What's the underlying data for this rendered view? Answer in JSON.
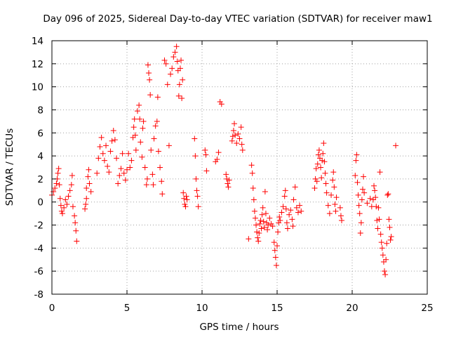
{
  "chart_data": {
    "type": "scatter",
    "title": "Day 096 of 2025, Sidereal Day-to-day VTEC variation (SDTVAR) for receiver maw1",
    "xlabel": "GPS time / hours",
    "ylabel": "SDTVAR / TECUs",
    "xlim": [
      0,
      25
    ],
    "ylim": [
      -8,
      14
    ],
    "xticks": [
      "0",
      "5",
      "10",
      "15",
      "20",
      "25"
    ],
    "yticks": [
      "-8",
      "-6",
      "-4",
      "-2",
      "0",
      "2",
      "4",
      "6",
      "8",
      "10",
      "12",
      "14"
    ],
    "grid": true,
    "marker": "+",
    "marker_color": "#ff0000",
    "series": [
      {
        "name": "SDTVAR",
        "points": [
          [
            0.0,
            0.6
          ],
          [
            0.1,
            0.9
          ],
          [
            0.2,
            1.2
          ],
          [
            0.3,
            1.6
          ],
          [
            0.35,
            2.0
          ],
          [
            0.4,
            2.5
          ],
          [
            0.45,
            2.9
          ],
          [
            0.5,
            1.5
          ],
          [
            0.55,
            0.3
          ],
          [
            0.6,
            -0.3
          ],
          [
            0.65,
            -0.8
          ],
          [
            0.7,
            -1.0
          ],
          [
            0.8,
            -0.5
          ],
          [
            0.9,
            0.2
          ],
          [
            1.0,
            -0.2
          ],
          [
            1.1,
            0.5
          ],
          [
            1.2,
            1.0
          ],
          [
            1.3,
            1.5
          ],
          [
            1.35,
            2.3
          ],
          [
            1.4,
            -0.4
          ],
          [
            1.5,
            -1.2
          ],
          [
            1.55,
            -1.8
          ],
          [
            1.6,
            -2.5
          ],
          [
            1.65,
            -3.4
          ],
          [
            2.2,
            -0.6
          ],
          [
            2.25,
            -0.2
          ],
          [
            2.3,
            0.3
          ],
          [
            2.3,
            1.2
          ],
          [
            2.4,
            2.2
          ],
          [
            2.45,
            2.8
          ],
          [
            2.5,
            1.6
          ],
          [
            2.6,
            0.9
          ],
          [
            3.0,
            2.5
          ],
          [
            3.1,
            3.8
          ],
          [
            3.2,
            4.8
          ],
          [
            3.3,
            5.6
          ],
          [
            3.4,
            4.2
          ],
          [
            3.5,
            3.6
          ],
          [
            3.6,
            4.9
          ],
          [
            3.7,
            3.1
          ],
          [
            3.8,
            2.6
          ],
          [
            3.9,
            4.4
          ],
          [
            4.0,
            5.3
          ],
          [
            4.1,
            6.2
          ],
          [
            4.2,
            5.4
          ],
          [
            4.3,
            3.8
          ],
          [
            4.4,
            1.6
          ],
          [
            4.5,
            2.3
          ],
          [
            4.6,
            2.9
          ],
          [
            4.7,
            4.2
          ],
          [
            4.8,
            2.5
          ],
          [
            4.9,
            1.9
          ],
          [
            5.0,
            2.8
          ],
          [
            5.1,
            4.2
          ],
          [
            5.2,
            3.0
          ],
          [
            5.3,
            3.6
          ],
          [
            5.4,
            5.6
          ],
          [
            5.45,
            6.5
          ],
          [
            5.5,
            7.2
          ],
          [
            5.55,
            5.8
          ],
          [
            5.6,
            4.5
          ],
          [
            5.7,
            7.9
          ],
          [
            5.8,
            8.4
          ],
          [
            5.85,
            7.2
          ],
          [
            5.9,
            5.2
          ],
          [
            6.0,
            3.9
          ],
          [
            6.05,
            6.4
          ],
          [
            6.1,
            7.0
          ],
          [
            6.2,
            3.0
          ],
          [
            6.3,
            1.5
          ],
          [
            6.35,
            2.0
          ],
          [
            6.4,
            11.9
          ],
          [
            6.45,
            11.2
          ],
          [
            6.5,
            10.6
          ],
          [
            6.55,
            9.3
          ],
          [
            6.6,
            4.5
          ],
          [
            6.7,
            2.4
          ],
          [
            6.75,
            1.5
          ],
          [
            6.8,
            5.5
          ],
          [
            6.9,
            6.6
          ],
          [
            7.0,
            7.0
          ],
          [
            7.05,
            9.1
          ],
          [
            7.1,
            4.4
          ],
          [
            7.2,
            3.0
          ],
          [
            7.3,
            1.8
          ],
          [
            7.35,
            0.7
          ],
          [
            7.5,
            12.3
          ],
          [
            7.6,
            12.0
          ],
          [
            7.7,
            10.2
          ],
          [
            7.8,
            4.9
          ],
          [
            7.9,
            11.1
          ],
          [
            8.0,
            11.6
          ],
          [
            8.1,
            12.6
          ],
          [
            8.2,
            13.0
          ],
          [
            8.3,
            13.5
          ],
          [
            8.35,
            12.2
          ],
          [
            8.4,
            11.4
          ],
          [
            8.45,
            9.2
          ],
          [
            8.5,
            10.2
          ],
          [
            8.55,
            11.6
          ],
          [
            8.6,
            12.3
          ],
          [
            8.65,
            9.0
          ],
          [
            8.7,
            10.6
          ],
          [
            8.75,
            0.8
          ],
          [
            8.8,
            0.3
          ],
          [
            8.85,
            -0.2
          ],
          [
            8.9,
            -0.4
          ],
          [
            8.95,
            0.5
          ],
          [
            9.0,
            0.2
          ],
          [
            9.5,
            5.5
          ],
          [
            9.55,
            4.0
          ],
          [
            9.6,
            2.0
          ],
          [
            9.65,
            1.0
          ],
          [
            9.7,
            0.5
          ],
          [
            9.75,
            -0.4
          ],
          [
            10.2,
            4.5
          ],
          [
            10.25,
            4.1
          ],
          [
            10.3,
            2.7
          ],
          [
            10.9,
            3.5
          ],
          [
            11.0,
            3.7
          ],
          [
            11.1,
            4.3
          ],
          [
            11.2,
            8.7
          ],
          [
            11.3,
            8.5
          ],
          [
            11.6,
            2.4
          ],
          [
            11.65,
            2.0
          ],
          [
            11.7,
            1.6
          ],
          [
            11.75,
            1.3
          ],
          [
            11.8,
            1.9
          ],
          [
            12.0,
            5.3
          ],
          [
            12.05,
            5.7
          ],
          [
            12.1,
            6.2
          ],
          [
            12.15,
            6.8
          ],
          [
            12.2,
            5.8
          ],
          [
            12.3,
            5.1
          ],
          [
            12.4,
            5.9
          ],
          [
            12.5,
            5.5
          ],
          [
            12.6,
            6.5
          ],
          [
            12.65,
            5.0
          ],
          [
            12.7,
            4.5
          ],
          [
            13.1,
            -3.2
          ],
          [
            13.3,
            3.2
          ],
          [
            13.35,
            2.5
          ],
          [
            13.4,
            1.2
          ],
          [
            13.45,
            0.2
          ],
          [
            13.5,
            -0.8
          ],
          [
            13.55,
            -1.4
          ],
          [
            13.6,
            -2.0
          ],
          [
            13.65,
            -2.6
          ],
          [
            13.7,
            -3.1
          ],
          [
            13.75,
            -3.4
          ],
          [
            13.8,
            -2.7
          ],
          [
            13.85,
            -1.9
          ],
          [
            13.9,
            -1.6
          ],
          [
            13.95,
            -2.3
          ],
          [
            14.0,
            -1.1
          ],
          [
            14.05,
            -0.5
          ],
          [
            14.1,
            -1.7
          ],
          [
            14.15,
            -2.2
          ],
          [
            14.2,
            0.9
          ],
          [
            14.25,
            -1.0
          ],
          [
            14.3,
            -1.8
          ],
          [
            14.35,
            -2.4
          ],
          [
            14.4,
            -2.0
          ],
          [
            14.5,
            -1.4
          ],
          [
            14.6,
            -1.9
          ],
          [
            14.7,
            -2.1
          ],
          [
            14.8,
            -3.5
          ],
          [
            14.85,
            -4.2
          ],
          [
            14.9,
            -4.8
          ],
          [
            14.95,
            -5.5
          ],
          [
            15.0,
            -3.8
          ],
          [
            15.05,
            -2.6
          ],
          [
            15.1,
            -1.8
          ],
          [
            15.15,
            -1.3
          ],
          [
            15.2,
            -1.6
          ],
          [
            15.3,
            -0.9
          ],
          [
            15.4,
            -0.4
          ],
          [
            15.5,
            0.5
          ],
          [
            15.55,
            1.0
          ],
          [
            15.6,
            -0.6
          ],
          [
            15.65,
            -1.8
          ],
          [
            15.7,
            -2.3
          ],
          [
            15.8,
            -1.1
          ],
          [
            15.9,
            -0.7
          ],
          [
            16.0,
            -1.5
          ],
          [
            16.05,
            -2.1
          ],
          [
            16.1,
            0.2
          ],
          [
            16.2,
            1.3
          ],
          [
            16.3,
            -0.5
          ],
          [
            16.4,
            -0.9
          ],
          [
            16.5,
            -0.3
          ],
          [
            16.6,
            -0.8
          ],
          [
            17.5,
            1.2
          ],
          [
            17.55,
            2.0
          ],
          [
            17.6,
            2.9
          ],
          [
            17.65,
            1.8
          ],
          [
            17.7,
            3.3
          ],
          [
            17.75,
            4.1
          ],
          [
            17.8,
            4.5
          ],
          [
            17.85,
            3.8
          ],
          [
            17.9,
            3.0
          ],
          [
            17.95,
            2.1
          ],
          [
            18.0,
            3.6
          ],
          [
            18.05,
            4.2
          ],
          [
            18.1,
            5.1
          ],
          [
            18.15,
            3.5
          ],
          [
            18.2,
            2.5
          ],
          [
            18.25,
            1.6
          ],
          [
            18.3,
            0.8
          ],
          [
            18.4,
            -0.3
          ],
          [
            18.5,
            -1.0
          ],
          [
            18.6,
            0.6
          ],
          [
            18.7,
            1.9
          ],
          [
            18.75,
            2.6
          ],
          [
            18.8,
            1.3
          ],
          [
            18.85,
            -0.2
          ],
          [
            18.9,
            -0.8
          ],
          [
            18.95,
            0.4
          ],
          [
            19.2,
            -0.5
          ],
          [
            19.25,
            -1.2
          ],
          [
            19.3,
            -1.6
          ],
          [
            20.2,
            2.3
          ],
          [
            20.25,
            3.6
          ],
          [
            20.3,
            4.1
          ],
          [
            20.35,
            1.7
          ],
          [
            20.4,
            0.6
          ],
          [
            20.45,
            -0.3
          ],
          [
            20.5,
            -1.0
          ],
          [
            20.55,
            -2.7
          ],
          [
            20.6,
            -1.8
          ],
          [
            20.65,
            0.2
          ],
          [
            20.7,
            1.1
          ],
          [
            20.75,
            2.2
          ],
          [
            20.8,
            0.8
          ],
          [
            21.0,
            -0.1
          ],
          [
            21.2,
            0.3
          ],
          [
            21.3,
            -0.4
          ],
          [
            21.4,
            0.2
          ],
          [
            21.45,
            1.4
          ],
          [
            21.5,
            1.0
          ],
          [
            21.55,
            0.4
          ],
          [
            21.6,
            -0.4
          ],
          [
            21.65,
            -1.6
          ],
          [
            21.7,
            -2.3
          ],
          [
            21.75,
            -0.5
          ],
          [
            21.8,
            -1.5
          ],
          [
            21.85,
            2.6
          ],
          [
            21.9,
            -2.8
          ],
          [
            21.95,
            -3.5
          ],
          [
            22.0,
            -4.0
          ],
          [
            22.05,
            -4.6
          ],
          [
            22.1,
            -5.2
          ],
          [
            22.15,
            -6.0
          ],
          [
            22.2,
            -6.3
          ],
          [
            22.25,
            -5.0
          ],
          [
            22.3,
            -3.6
          ],
          [
            22.35,
            0.6
          ],
          [
            22.4,
            0.7
          ],
          [
            22.45,
            -1.5
          ],
          [
            22.5,
            -2.2
          ],
          [
            22.55,
            -3.3
          ],
          [
            22.6,
            -3.0
          ],
          [
            22.9,
            4.9
          ]
        ]
      }
    ]
  }
}
